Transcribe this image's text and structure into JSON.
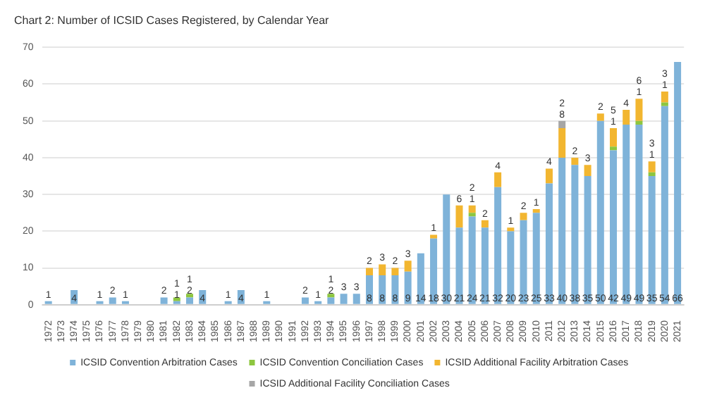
{
  "chart_data": {
    "type": "bar",
    "title": "Chart 2: Number of ICSID Cases Registered, by Calendar Year",
    "stacked": true,
    "data_labels": true,
    "grid": "y",
    "legend": "bottom",
    "ylim": [
      0,
      70
    ],
    "yticks": [
      0,
      10,
      20,
      30,
      40,
      50,
      60,
      70
    ],
    "categories": [
      "1972",
      "1973",
      "1974",
      "1975",
      "1976",
      "1977",
      "1978",
      "1979",
      "1980",
      "1981",
      "1982",
      "1983",
      "1984",
      "1985",
      "1986",
      "1987",
      "1988",
      "1989",
      "1990",
      "1991",
      "1992",
      "1993",
      "1994",
      "1995",
      "1996",
      "1997",
      "1998",
      "1999",
      "2000",
      "2001",
      "2002",
      "2003",
      "2004",
      "2005",
      "2006",
      "2007",
      "2008",
      "2009",
      "2010",
      "2011",
      "2012",
      "2013",
      "2014",
      "2015",
      "2016",
      "2017",
      "2018",
      "2019",
      "2020",
      "2021"
    ],
    "series": [
      {
        "name": "ICSID Convention Arbitration Cases",
        "color": "#7fb3d9",
        "values": [
          1,
          null,
          4,
          null,
          1,
          2,
          1,
          null,
          null,
          2,
          1,
          2,
          4,
          null,
          1,
          4,
          null,
          1,
          null,
          null,
          2,
          1,
          2,
          3,
          3,
          8,
          8,
          8,
          9,
          14,
          18,
          30,
          21,
          24,
          21,
          32,
          20,
          23,
          25,
          33,
          40,
          38,
          35,
          50,
          42,
          49,
          49,
          35,
          54,
          66
        ]
      },
      {
        "name": "ICSID Convention Conciliation Cases",
        "color": "#8dc63f",
        "values": [
          null,
          null,
          null,
          null,
          null,
          null,
          null,
          null,
          null,
          null,
          1,
          1,
          null,
          null,
          null,
          null,
          null,
          null,
          null,
          null,
          null,
          null,
          1,
          null,
          null,
          null,
          null,
          null,
          null,
          null,
          null,
          null,
          null,
          1,
          null,
          null,
          null,
          null,
          null,
          null,
          null,
          null,
          null,
          null,
          1,
          null,
          1,
          1,
          1,
          null
        ]
      },
      {
        "name": "ICSID Additional Facility Arbitration Cases",
        "color": "#f2b630",
        "values": [
          null,
          null,
          null,
          null,
          null,
          null,
          null,
          null,
          null,
          null,
          null,
          null,
          null,
          null,
          null,
          null,
          null,
          null,
          null,
          null,
          null,
          null,
          null,
          null,
          null,
          2,
          3,
          2,
          3,
          null,
          1,
          null,
          6,
          2,
          2,
          4,
          1,
          2,
          1,
          4,
          8,
          2,
          3,
          2,
          5,
          4,
          6,
          3,
          3,
          null
        ]
      },
      {
        "name": "ICSID Additional Facility Conciliation Cases",
        "color": "#a6a6a6",
        "values": [
          null,
          null,
          null,
          null,
          null,
          null,
          null,
          null,
          null,
          null,
          null,
          null,
          null,
          null,
          null,
          null,
          null,
          null,
          null,
          null,
          null,
          null,
          null,
          null,
          null,
          null,
          null,
          null,
          null,
          null,
          null,
          null,
          null,
          null,
          null,
          null,
          null,
          null,
          null,
          null,
          2,
          null,
          null,
          null,
          null,
          null,
          null,
          null,
          null,
          null
        ]
      }
    ]
  }
}
